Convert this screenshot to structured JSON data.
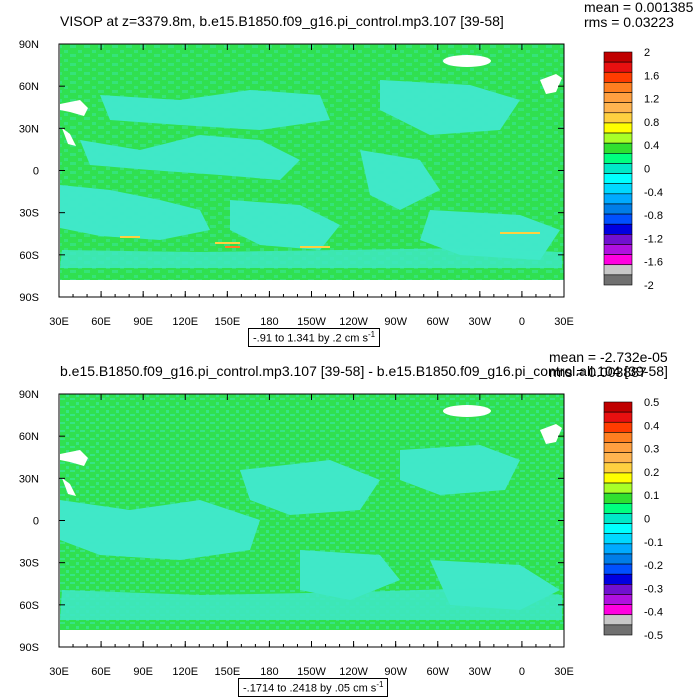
{
  "panels": [
    {
      "title": "VISOP at z=3379.8m, b.e15.B1850.f09_g16.pi_control.mp3.107 [39-58]",
      "mean": "mean = 0.001385",
      "rms": "rms = 0.03223",
      "contour_info": "-.91 to 1.341 by .2 cm s",
      "contour_info_sup": "-1",
      "colorbar": {
        "labels": [
          "2",
          "1.6",
          "1.2",
          "0.8",
          "0.4",
          "0",
          "-0.4",
          "-0.8",
          "-1.2",
          "-1.6",
          "-2"
        ],
        "colors": [
          "#c00000",
          "#e81010",
          "#ff3c00",
          "#ff7f20",
          "#ffa040",
          "#ffb450",
          "#ffd040",
          "#ffff00",
          "#a8ff28",
          "#30e030",
          "#00ff80",
          "#00e8c8",
          "#00ffff",
          "#00d8ff",
          "#00aaff",
          "#007de8",
          "#0050ff",
          "#0000e0",
          "#7010d0",
          "#b010e0",
          "#ff00e0",
          "#c8c8c8",
          "#707070"
        ]
      }
    },
    {
      "title": "b.e15.B1850.f09_g16.pi_control.mp3.107 [39-58] - b.e15.B1850.f09_g16.pi_control.all.104 [39-58]",
      "mean": "mean = -2.732e-05",
      "rms": "rms = 0.003887",
      "contour_info": "-.1714 to .2418 by .05 cm s",
      "contour_info_sup": "-1",
      "colorbar": {
        "labels": [
          "0.5",
          "0.4",
          "0.3",
          "0.2",
          "0.1",
          "0",
          "-0.1",
          "-0.2",
          "-0.3",
          "-0.4",
          "-0.5"
        ],
        "colors": [
          "#c00000",
          "#e81010",
          "#ff3c00",
          "#ff7f20",
          "#ffa040",
          "#ffb450",
          "#ffd040",
          "#ffff00",
          "#a8ff28",
          "#30e030",
          "#00ff80",
          "#00e8c8",
          "#00ffff",
          "#00d8ff",
          "#00aaff",
          "#007de8",
          "#0050ff",
          "#0000e0",
          "#7010d0",
          "#b010e0",
          "#ff00e0",
          "#c8c8c8",
          "#707070"
        ]
      }
    }
  ],
  "axes": {
    "x_ticks": [
      "30E",
      "60E",
      "90E",
      "120E",
      "150E",
      "180",
      "150W",
      "120W",
      "90W",
      "60W",
      "30W",
      "0",
      "30E"
    ],
    "y_ticks": [
      "90N",
      "60N",
      "30N",
      "0",
      "30S",
      "60S",
      "90S"
    ]
  },
  "chart_data": [
    {
      "type": "heatmap",
      "title": "VISOP at z=3379.8m, b.e15.B1850.f09_g16.pi_control.mp3.107 [39-58]",
      "x_ticks": [
        "30E",
        "60E",
        "90E",
        "120E",
        "150E",
        "180",
        "150W",
        "120W",
        "90W",
        "60W",
        "30W",
        "0",
        "30E"
      ],
      "y_ticks": [
        "90N",
        "60N",
        "30N",
        "0",
        "30S",
        "60S",
        "90S"
      ],
      "xlim": [
        30,
        390
      ],
      "ylim": [
        -90,
        90
      ],
      "colorbar_levels": [
        2,
        1.6,
        1.2,
        0.8,
        0.4,
        0,
        -0.4,
        -0.8,
        -1.2,
        -1.6,
        -2
      ],
      "dominant_value_range": [
        -0.4,
        0.2
      ],
      "mean": 0.001385,
      "rms": 0.03223,
      "contour_min": -0.91,
      "contour_max": 1.341,
      "contour_interval": 0.2,
      "units": "cm s-1"
    },
    {
      "type": "heatmap",
      "title": "b.e15.B1850.f09_g16.pi_control.mp3.107 [39-58] - b.e15.B1850.f09_g16.pi_control.all.104 [39-58]",
      "x_ticks": [
        "30E",
        "60E",
        "90E",
        "120E",
        "150E",
        "180",
        "150W",
        "120W",
        "90W",
        "60W",
        "30W",
        "0",
        "30E"
      ],
      "y_ticks": [
        "90N",
        "60N",
        "30N",
        "0",
        "30S",
        "60S",
        "90S"
      ],
      "xlim": [
        30,
        390
      ],
      "ylim": [
        -90,
        90
      ],
      "colorbar_levels": [
        0.5,
        0.4,
        0.3,
        0.2,
        0.1,
        0,
        -0.1,
        -0.2,
        -0.3,
        -0.4,
        -0.5
      ],
      "dominant_value_range": [
        -0.05,
        0.05
      ],
      "mean": -2.732e-05,
      "rms": 0.003887,
      "contour_min": -0.1714,
      "contour_max": 0.2418,
      "contour_interval": 0.05,
      "units": "cm s-1"
    }
  ]
}
